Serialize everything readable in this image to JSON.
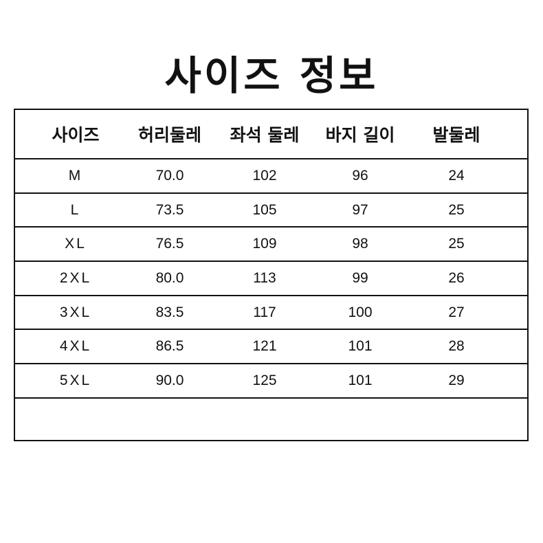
{
  "title": "사이즈 정보",
  "table": {
    "headers": [
      "사이즈",
      "허리둘레",
      "좌석 둘레",
      "바지 길이",
      "발둘레"
    ],
    "rows": [
      [
        "M",
        "70.0",
        "102",
        "96",
        "24"
      ],
      [
        "L",
        "73.5",
        "105",
        "97",
        "25"
      ],
      [
        "XL",
        "76.5",
        "109",
        "98",
        "25"
      ],
      [
        "2XL",
        "80.0",
        "113",
        "99",
        "26"
      ],
      [
        "3XL",
        "83.5",
        "117",
        "100",
        "27"
      ],
      [
        "4XL",
        "86.5",
        "121",
        "101",
        "28"
      ],
      [
        "5XL",
        "90.0",
        "125",
        "101",
        "29"
      ]
    ]
  }
}
